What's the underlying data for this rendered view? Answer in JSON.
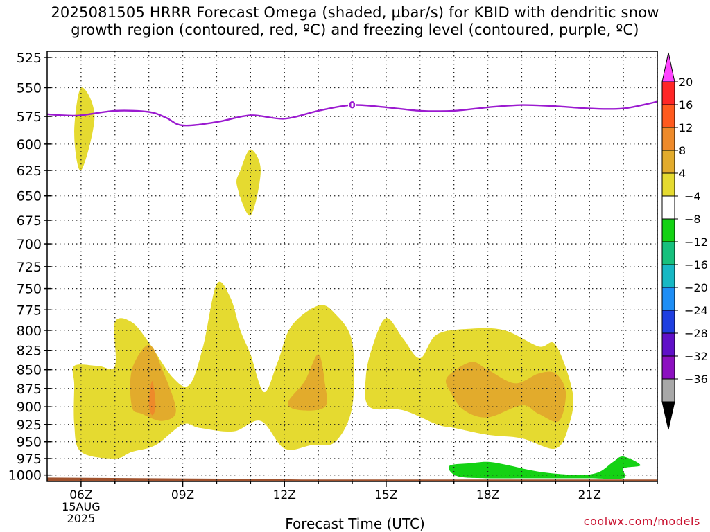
{
  "title_line1": "2025081505 HRRR Forecast Omega (shaded, µbar/s) for KBID with dendritic snow",
  "title_line2": "growth region (contoured, red, ºC) and freezing level (contoured, purple, ºC)",
  "credit": "coolwx.com/models",
  "chart_data": {
    "type": "contour",
    "title": "2025081505 HRRR Forecast Omega (shaded, µbar/s) for KBID with dendritic snow growth region (contoured, red, ºC) and freezing level (contoured, purple, ºC)",
    "xlabel": "Forecast Time (UTC)",
    "ylabel": "",
    "x_ticks": [
      "06Z",
      "09Z",
      "12Z",
      "15Z",
      "18Z",
      "21Z"
    ],
    "x_first_tick_sublabels": [
      "15AUG",
      "2025"
    ],
    "y_ticks": [
      525,
      550,
      575,
      600,
      625,
      650,
      675,
      700,
      725,
      750,
      775,
      800,
      825,
      850,
      875,
      900,
      925,
      950,
      975,
      1000
    ],
    "y_scale": "log-pressure (inverted)",
    "xlim_hours": [
      5.0,
      23.0
    ],
    "ylim_hpa": [
      520,
      1010
    ],
    "grid": true,
    "colorbar": {
      "labels": [
        "20",
        "16",
        "12",
        "8",
        "4",
        "−4",
        "−8",
        "−12",
        "−16",
        "−20",
        "−24",
        "−28",
        "−32",
        "−36"
      ],
      "colors": [
        "#ff44ff",
        "#ff2626",
        "#ff5a1e",
        "#ee8a2a",
        "#e2ab2c",
        "#e5da30",
        "#ffffff",
        "#14d214",
        "#17c07d",
        "#17b8c4",
        "#1e8ef5",
        "#1f3fe0",
        "#6010c8",
        "#8c10c0",
        "#a8a8a8",
        "#000000"
      ]
    },
    "freezing_level": {
      "contour_label": "0",
      "x": [
        5.0,
        5.5,
        6.0,
        7.0,
        8.0,
        8.5,
        9.0,
        10.0,
        11.0,
        12.0,
        13.0,
        14.0,
        15.0,
        16.0,
        17.0,
        18.0,
        19.0,
        20.0,
        21.0,
        22.0,
        23.0
      ],
      "y": [
        573,
        574,
        574,
        570,
        571,
        576,
        583,
        580,
        574,
        577,
        570,
        565,
        567,
        570,
        570,
        567,
        565,
        566,
        568,
        568,
        562
      ]
    },
    "omega_regions": [
      {
        "name": "",
        "range": [
          4,
          8
        ],
        "points": [
          [
            6.0,
            550
          ],
          [
            6.4,
            575
          ],
          [
            6.0,
            625
          ],
          [
            5.8,
            590
          ]
        ]
      },
      {
        "name": "",
        "range": [
          4,
          8
        ],
        "points": [
          [
            10.7,
            625
          ],
          [
            11.0,
            605
          ],
          [
            11.3,
            625
          ],
          [
            11.0,
            670
          ],
          [
            10.6,
            640
          ]
        ]
      },
      {
        "name": "",
        "range": [
          4,
          8
        ],
        "points": [
          [
            5.8,
            845
          ],
          [
            6.5,
            845
          ],
          [
            7.0,
            845
          ],
          [
            7.0,
            790
          ],
          [
            7.5,
            790
          ],
          [
            8.0,
            815
          ],
          [
            8.7,
            860
          ],
          [
            9.2,
            870
          ],
          [
            9.6,
            820
          ],
          [
            10.0,
            745
          ],
          [
            10.4,
            760
          ],
          [
            10.7,
            800
          ],
          [
            11.0,
            830
          ],
          [
            11.4,
            880
          ],
          [
            11.8,
            840
          ],
          [
            12.2,
            795
          ],
          [
            13.0,
            770
          ],
          [
            13.5,
            780
          ],
          [
            14.0,
            815
          ],
          [
            14.0,
            900
          ],
          [
            13.5,
            950
          ],
          [
            12.8,
            955
          ],
          [
            12.0,
            960
          ],
          [
            11.3,
            920
          ],
          [
            10.5,
            935
          ],
          [
            9.5,
            930
          ],
          [
            9.0,
            925
          ],
          [
            8.2,
            955
          ],
          [
            7.5,
            965
          ],
          [
            7.0,
            975
          ],
          [
            6.0,
            965
          ],
          [
            5.8,
            925
          ],
          [
            5.8,
            870
          ]
        ]
      },
      {
        "name": "",
        "range": [
          4,
          8
        ],
        "points": [
          [
            14.6,
            820
          ],
          [
            15.0,
            785
          ],
          [
            15.5,
            810
          ],
          [
            16.0,
            835
          ],
          [
            16.5,
            805
          ],
          [
            17.5,
            798
          ],
          [
            18.5,
            800
          ],
          [
            19.5,
            820
          ],
          [
            20.0,
            818
          ],
          [
            20.5,
            880
          ],
          [
            20.4,
            925
          ],
          [
            20.0,
            960
          ],
          [
            19.0,
            945
          ],
          [
            18.0,
            940
          ],
          [
            17.0,
            930
          ],
          [
            16.5,
            925
          ],
          [
            15.5,
            905
          ],
          [
            14.5,
            900
          ],
          [
            14.4,
            860
          ]
        ]
      },
      {
        "name": "",
        "range": [
          8,
          12
        ],
        "points": [
          [
            7.5,
            850
          ],
          [
            8.0,
            818
          ],
          [
            8.4,
            850
          ],
          [
            8.8,
            905
          ],
          [
            8.4,
            920
          ],
          [
            7.8,
            910
          ],
          [
            7.5,
            900
          ]
        ]
      },
      {
        "name": "",
        "range": [
          8,
          12
        ],
        "points": [
          [
            12.1,
            895
          ],
          [
            12.6,
            865
          ],
          [
            13.0,
            830
          ],
          [
            13.2,
            870
          ],
          [
            13.2,
            900
          ],
          [
            12.5,
            905
          ]
        ]
      },
      {
        "name": "",
        "range": [
          8,
          12
        ],
        "points": [
          [
            16.8,
            860
          ],
          [
            17.5,
            840
          ],
          [
            18.0,
            850
          ],
          [
            18.8,
            868
          ],
          [
            19.5,
            855
          ],
          [
            20.0,
            855
          ],
          [
            20.3,
            880
          ],
          [
            20.1,
            920
          ],
          [
            19.5,
            910
          ],
          [
            19.0,
            898
          ],
          [
            18.0,
            915
          ],
          [
            17.3,
            905
          ],
          [
            16.9,
            880
          ]
        ]
      },
      {
        "name": "",
        "range": [
          12,
          16
        ],
        "points": [
          [
            8.0,
            895
          ],
          [
            8.1,
            865
          ],
          [
            8.2,
            898
          ],
          [
            8.1,
            912
          ]
        ]
      },
      {
        "name": "",
        "range": [
          -8,
          -4
        ],
        "points": [
          [
            16.9,
            985
          ],
          [
            17.5,
            982
          ],
          [
            18.0,
            980
          ],
          [
            18.6,
            985
          ],
          [
            19.3,
            993
          ],
          [
            20.0,
            998
          ],
          [
            20.8,
            1000
          ],
          [
            21.3,
            995
          ],
          [
            21.7,
            980
          ],
          [
            22.0,
            972
          ],
          [
            22.5,
            985
          ],
          [
            22.0,
            990
          ],
          [
            22.0,
            1005
          ],
          [
            21.0,
            1005
          ],
          [
            20.0,
            1005
          ],
          [
            19.0,
            1005
          ],
          [
            18.0,
            1005
          ],
          [
            17.2,
            1003
          ],
          [
            16.9,
            995
          ]
        ]
      }
    ],
    "surface_terrain_hpa": {
      "x": [
        5.0,
        8.0,
        11.0,
        12.5,
        14.0,
        23.0
      ],
      "y": [
        1004,
        1005,
        1006,
        1007,
        1007,
        1007
      ]
    }
  }
}
